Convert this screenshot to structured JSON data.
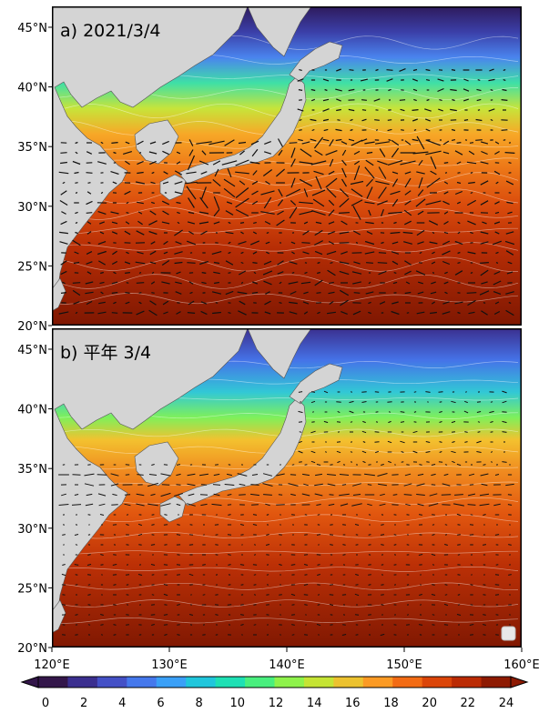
{
  "panels": [
    {
      "id": "a",
      "label": "a) 2021/3/4"
    },
    {
      "id": "b",
      "label": "b) 平年 3/4"
    }
  ],
  "lat_ticks": [
    "20°N",
    "25°N",
    "30°N",
    "35°N",
    "40°N",
    "45°N"
  ],
  "lon_ticks": [
    "120°E",
    "130°E",
    "140°E",
    "150°E",
    "160°E"
  ],
  "colorbar": {
    "ticks": [
      "0",
      "2",
      "4",
      "6",
      "8",
      "10",
      "12",
      "14",
      "16",
      "18",
      "20",
      "22",
      "24"
    ],
    "colors": [
      "#33164a",
      "#3b2f8f",
      "#4450c6",
      "#4578ec",
      "#3aa0f7",
      "#20c6dc",
      "#1ee0b4",
      "#49ef7e",
      "#8ef24b",
      "#c5e434",
      "#ecc22f",
      "#fb9a24",
      "#f26b14",
      "#db4509",
      "#bb2b04",
      "#8e1a02"
    ]
  },
  "map": {
    "land_color": "#d4d4d4",
    "ocean_deep_color": "#7f1a02"
  }
}
